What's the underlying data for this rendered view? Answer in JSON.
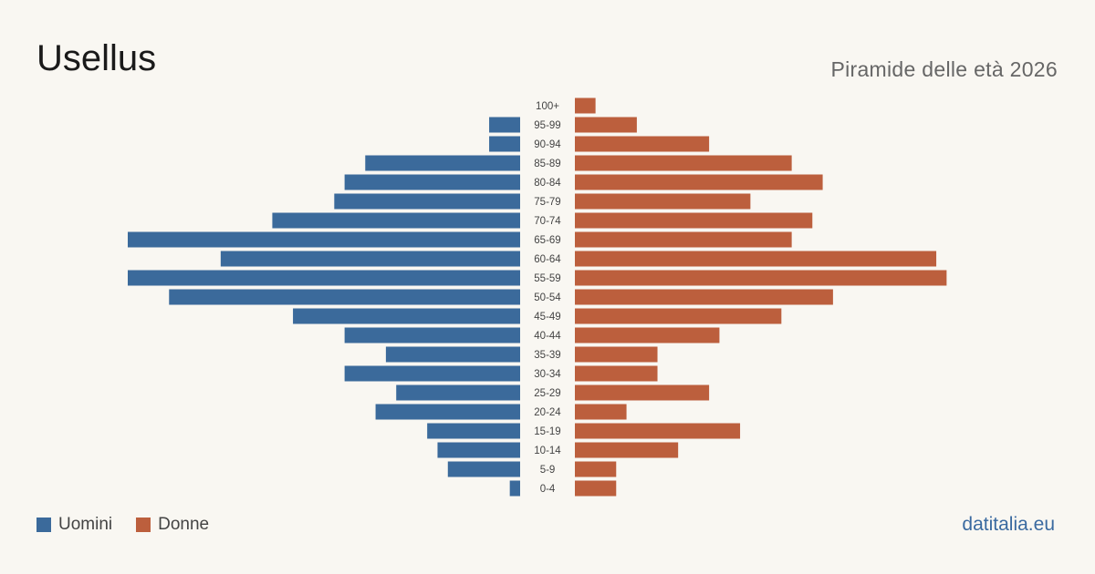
{
  "header": {
    "title": "Usellus",
    "subtitle": "Piramide delle età 2026"
  },
  "legend": {
    "men_label": "Uomini",
    "women_label": "Donne"
  },
  "footer": {
    "brand": "datitalia.eu"
  },
  "colors": {
    "men": "#3b6a9b",
    "women": "#bc5f3d"
  },
  "chart_data": {
    "type": "bar",
    "orientation": "horizontal-pyramid",
    "categories": [
      "100+",
      "95-99",
      "90-94",
      "85-89",
      "80-84",
      "75-79",
      "70-74",
      "65-69",
      "60-64",
      "55-59",
      "50-54",
      "45-49",
      "40-44",
      "35-39",
      "30-34",
      "25-29",
      "20-24",
      "15-19",
      "10-14",
      "5-9",
      "0-4"
    ],
    "series": [
      {
        "name": "Uomini",
        "values": [
          0,
          3,
          3,
          15,
          17,
          18,
          24,
          38,
          29,
          38,
          34,
          22,
          17,
          13,
          17,
          12,
          14,
          9,
          8,
          7,
          1
        ]
      },
      {
        "name": "Donne",
        "values": [
          2,
          6,
          13,
          21,
          24,
          17,
          23,
          21,
          35,
          36,
          25,
          20,
          14,
          8,
          8,
          13,
          5,
          16,
          10,
          4,
          4
        ]
      }
    ],
    "xlim": [
      0,
      38
    ],
    "grid": false,
    "legend_position": "bottom-left"
  }
}
